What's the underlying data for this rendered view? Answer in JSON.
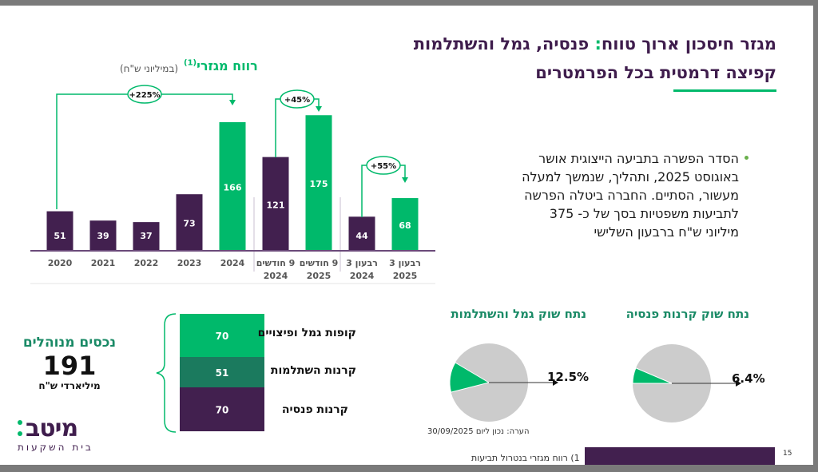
{
  "header": {
    "title_part1": "מגזר חיסכון ארוך טווח",
    "title_colon": ":",
    "title_part2": " פנסיה, גמל והשתלמות",
    "subtitle": "קפיצה דרמטית בכל הפרמטרים"
  },
  "bullet": {
    "text": "הסדר הפשרה בתביעה הייצוגית אושר באוגוסט 2025, ותהליך, שנמשך למעלה מעשור, הסתיים. החברה ביטלה הפרשה לתביעות משפטיות בסך של כ- 375 מיליוני ש\"ח ברבעון השלישי"
  },
  "colors": {
    "purple": "#42204f",
    "green": "#00b96b",
    "teal": "#1b7a5e",
    "pie_gray": "#cccccc",
    "title_green": "#1a8a66"
  },
  "chart_data": [
    {
      "type": "bar",
      "title": "רווח מגזרי",
      "title_superscript": "(1)",
      "unit_label": "(במיליוני ש\"ח)",
      "categories": [
        "2020",
        "2021",
        "2022",
        "2023",
        "2024",
        "9 חודשים 2024",
        "9 חודשים 2025",
        "רבעון 3 2024",
        "רבעון 3 2025"
      ],
      "category_lines": [
        [
          "2020"
        ],
        [
          "2021"
        ],
        [
          "2022"
        ],
        [
          "2023"
        ],
        [
          "2024"
        ],
        [
          "9 חודשים",
          "2024"
        ],
        [
          "9 חודשים",
          "2025"
        ],
        [
          "רבעון 3",
          "2024"
        ],
        [
          "רבעון 3",
          "2025"
        ]
      ],
      "values": [
        51,
        39,
        37,
        73,
        166,
        121,
        175,
        44,
        68
      ],
      "bar_colors": [
        "purple",
        "purple",
        "purple",
        "purple",
        "green",
        "purple",
        "green",
        "purple",
        "green"
      ],
      "ylim": [
        0,
        180
      ],
      "grid": false,
      "annotations": [
        {
          "from": 0,
          "to": 4,
          "label": "+225%"
        },
        {
          "from": 5,
          "to": 6,
          "label": "+45%"
        },
        {
          "from": 7,
          "to": 8,
          "label": "+55%"
        }
      ]
    },
    {
      "type": "bar",
      "stacked": true,
      "title": "נכסים מנוהלים",
      "total": "191",
      "unit": "מיליארדי ש\"ח",
      "segments": [
        {
          "label": "קופות גמל ופיצויים",
          "value": 70,
          "color": "green"
        },
        {
          "label": "קרנות השתלמות",
          "value": 51,
          "color": "teal"
        },
        {
          "label": "קרנות פנסיה",
          "value": 70,
          "color": "purple"
        }
      ]
    },
    {
      "type": "pie",
      "title": "נתח שוק גמל והשתלמות",
      "share_percent": 12.5,
      "label": "12.5%"
    },
    {
      "type": "pie",
      "title": "נתח שוק קרנות פנסיה",
      "share_percent": 6.4,
      "label": "6.4%"
    }
  ],
  "note": "הערה: נכון ליום 30/09/2025",
  "logo": {
    "main": "מיטב",
    "sub": "בית השקעות"
  },
  "footer": {
    "footnote": "1)   רווח מגזרי בנטרול תביעות",
    "page": "15"
  }
}
